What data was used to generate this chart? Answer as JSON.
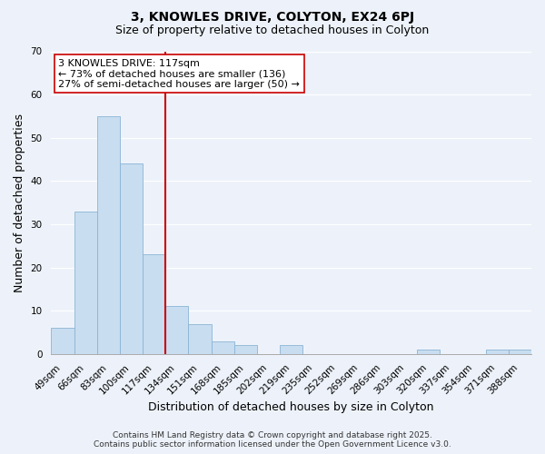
{
  "title_line1": "3, KNOWLES DRIVE, COLYTON, EX24 6PJ",
  "title_line2": "Size of property relative to detached houses in Colyton",
  "xlabel": "Distribution of detached houses by size in Colyton",
  "ylabel": "Number of detached properties",
  "bar_labels": [
    "49sqm",
    "66sqm",
    "83sqm",
    "100sqm",
    "117sqm",
    "134sqm",
    "151sqm",
    "168sqm",
    "185sqm",
    "202sqm",
    "219sqm",
    "235sqm",
    "252sqm",
    "269sqm",
    "286sqm",
    "303sqm",
    "320sqm",
    "337sqm",
    "354sqm",
    "371sqm",
    "388sqm"
  ],
  "bar_values": [
    6,
    33,
    55,
    44,
    23,
    11,
    7,
    3,
    2,
    0,
    2,
    0,
    0,
    0,
    0,
    0,
    1,
    0,
    0,
    1,
    1
  ],
  "bar_color": "#c8ddf0",
  "bar_edge_color": "#8ab4d4",
  "vline_x": 4.5,
  "vline_color": "#cc0000",
  "annotation_title": "3 KNOWLES DRIVE: 117sqm",
  "annotation_line2": "← 73% of detached houses are smaller (136)",
  "annotation_line3": "27% of semi-detached houses are larger (50) →",
  "annotation_box_color": "#ffffff",
  "annotation_box_edge": "#cc0000",
  "ylim": [
    0,
    70
  ],
  "yticks": [
    0,
    10,
    20,
    30,
    40,
    50,
    60,
    70
  ],
  "footer_line1": "Contains HM Land Registry data © Crown copyright and database right 2025.",
  "footer_line2": "Contains public sector information licensed under the Open Government Licence v3.0.",
  "background_color": "#edf2fa",
  "grid_color": "#ffffff",
  "title_fontsize": 10,
  "subtitle_fontsize": 9,
  "axis_label_fontsize": 9,
  "tick_fontsize": 7.5,
  "annotation_fontsize": 8,
  "footer_fontsize": 6.5
}
